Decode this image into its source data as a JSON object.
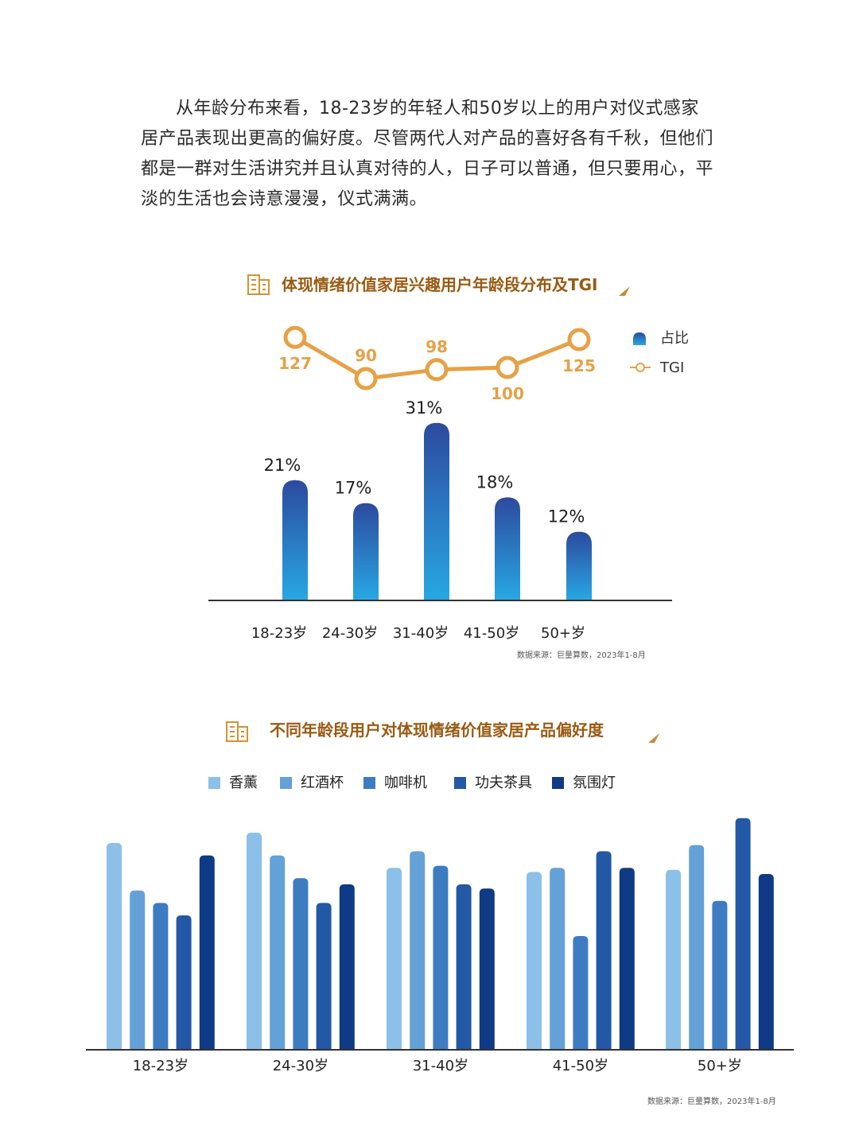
{
  "intro_text": "从年龄分布来看，18-23岁的年轻人和50岁以上的用户对仪式感家居产品表现出更高的偏好度。尽管两代人对产品的喜好各有千秋，但他们都是一群对生活讲究并且认真对待的人，日子可以普通，但只要用心，平淡的生活也会诗意漫漫，仪式满满。",
  "colors": {
    "title_text": "#9a5a12",
    "title_underline": "#c98a3a",
    "tgi_line": "#e6a146",
    "bar_top": "#2d4a9e",
    "bar_bottom": "#27a8e4",
    "pref_series": [
      "#8cc0e8",
      "#64a1d6",
      "#3e7cc2",
      "#2358a6",
      "#0e3a86"
    ]
  },
  "chart_data": [
    {
      "type": "bar",
      "title": "体现情绪价值家居兴趣用户年龄段分布及TGI",
      "categories": [
        "18-23岁",
        "24-30岁",
        "31-40岁",
        "41-50岁",
        "50+岁"
      ],
      "series": [
        {
          "name": "占比",
          "values": [
            21,
            17,
            31,
            18,
            12
          ],
          "labels": [
            "21%",
            "17%",
            "31%",
            "18%",
            "12%"
          ],
          "kind": "bar"
        },
        {
          "name": "TGI",
          "values": [
            127,
            90,
            98,
            100,
            125
          ],
          "labels": [
            "127",
            "90",
            "98",
            "100",
            "125"
          ],
          "kind": "line"
        }
      ],
      "legend": [
        "占比",
        "TGI"
      ],
      "legend_position": "top-right",
      "source": "数据来源：巨量算数，2023年1-8月"
    },
    {
      "type": "bar",
      "title": "不同年龄段用户对体现情绪价值家居产品偏好度",
      "categories": [
        "18-23岁",
        "24-30岁",
        "31-40岁",
        "41-50岁",
        "50+岁"
      ],
      "series": [
        {
          "name": "香薰",
          "values": [
            100,
            105,
            88,
            86,
            87
          ]
        },
        {
          "name": "红酒杯",
          "values": [
            77,
            94,
            96,
            88,
            99
          ]
        },
        {
          "name": "咖啡机",
          "values": [
            71,
            83,
            89,
            55,
            72
          ]
        },
        {
          "name": "功夫茶具",
          "values": [
            65,
            71,
            80,
            96,
            112
          ]
        },
        {
          "name": "氛围灯",
          "values": [
            94,
            80,
            78,
            88,
            85
          ]
        }
      ],
      "legend_position": "top",
      "y_axis": "none (values estimated relative)",
      "source": "数据来源：巨量算数，2023年1-8月"
    }
  ]
}
